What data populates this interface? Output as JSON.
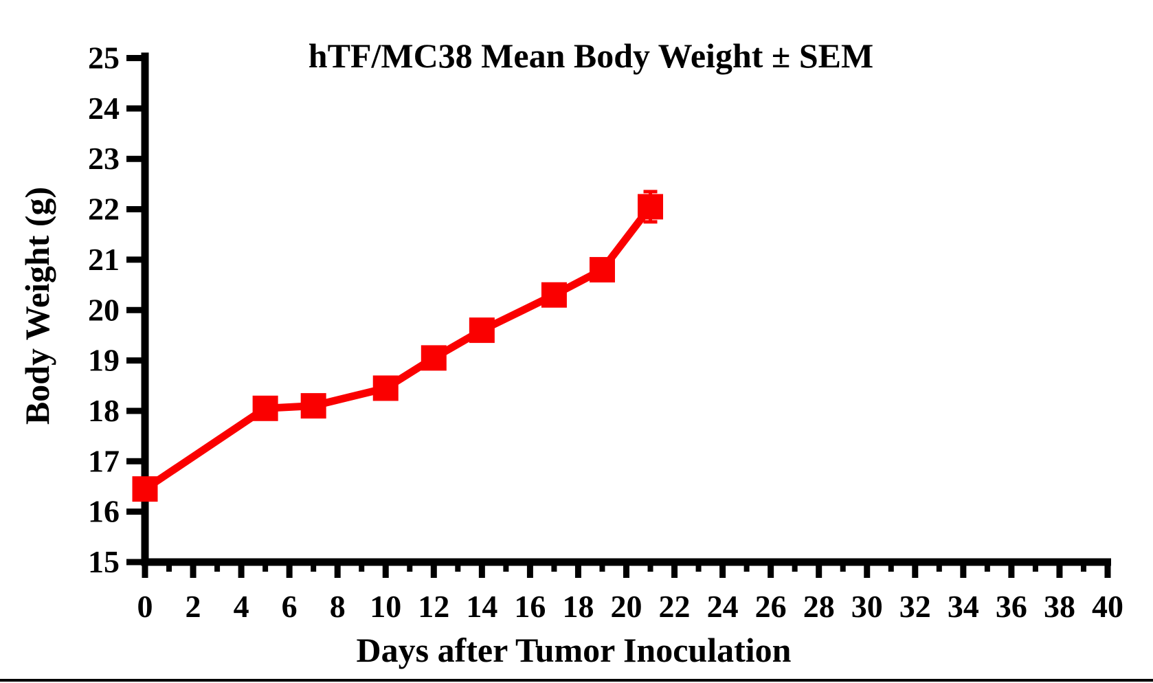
{
  "figure": {
    "title": "hTF/MC38 Mean Body Weight ± SEM",
    "xlabel": "Days after Tumor Inoculation",
    "ylabel": "Body Weight (g)"
  },
  "colors": {
    "series": "#fa0000",
    "axis": "#000000",
    "background": "#ffffff"
  },
  "chart_data": {
    "type": "line",
    "title": "hTF/MC38 Mean Body Weight ± SEM",
    "xlabel": "Days after Tumor Inoculation",
    "ylabel": "Body Weight (g)",
    "xlim": [
      0,
      40
    ],
    "ylim": [
      15,
      25
    ],
    "grid": false,
    "legend": null,
    "x_tick_labels": [
      "0",
      "2",
      "4",
      "6",
      "8",
      "10",
      "12",
      "14",
      "16",
      "18",
      "20",
      "22",
      "24",
      "26",
      "28",
      "30",
      "32",
      "34",
      "36",
      "38",
      "40"
    ],
    "x_minor_tick_step": 1,
    "y_tick_labels": [
      "15",
      "16",
      "17",
      "18",
      "19",
      "20",
      "21",
      "22",
      "23",
      "24",
      "25"
    ],
    "series": [
      {
        "name": "hTF/MC38 mean body weight",
        "color": "#fa0000",
        "marker": "square",
        "points": [
          {
            "day": 0,
            "weight": 16.45,
            "sem": null
          },
          {
            "day": 5,
            "weight": 18.05,
            "sem": null
          },
          {
            "day": 7,
            "weight": 18.1,
            "sem": null
          },
          {
            "day": 10,
            "weight": 18.45,
            "sem": null
          },
          {
            "day": 12,
            "weight": 19.05,
            "sem": null
          },
          {
            "day": 14,
            "weight": 19.6,
            "sem": null
          },
          {
            "day": 17,
            "weight": 20.3,
            "sem": null
          },
          {
            "day": 19,
            "weight": 20.8,
            "sem": null
          },
          {
            "day": 21,
            "weight": 22.05,
            "sem": 0.3
          }
        ]
      }
    ]
  }
}
